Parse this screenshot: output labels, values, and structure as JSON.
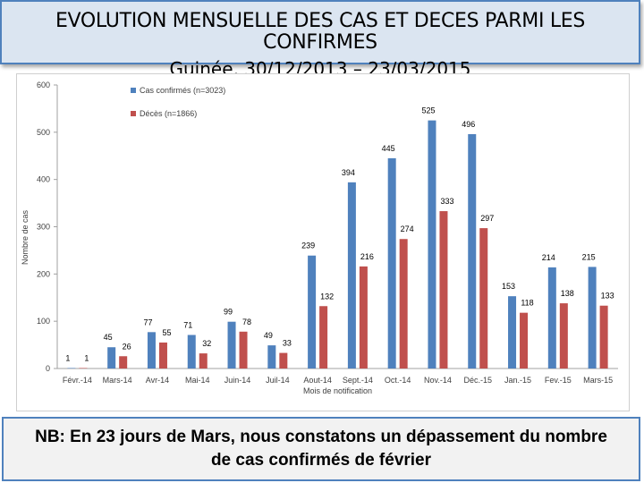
{
  "title": {
    "line1": "EVOLUTION MENSUELLE DES CAS ET DECES PARMI LES CONFIRMES",
    "line2": "Guinée, 30/12/2013 – 23/03/2015"
  },
  "note": {
    "line1": "NB: En 23 jours de Mars, nous constatons un dépassement du nombre",
    "line2": "de cas confirmés de février"
  },
  "colors": {
    "cas": "#4f81bd",
    "deces": "#c0504d"
  },
  "chart_data": {
    "type": "bar",
    "title": "",
    "xlabel": "Mois de notification",
    "ylabel": "Nombre de cas",
    "ylim": [
      0,
      600
    ],
    "yticks": [
      0,
      100,
      200,
      300,
      400,
      500,
      600
    ],
    "legend_position": "top-center",
    "categories": [
      "Févr.-14",
      "Mars-14",
      "Avr-14",
      "Mai-14",
      "Juin-14",
      "Juil-14",
      "Aout-14",
      "Sept.-14",
      "Oct.-14",
      "Nov.-14",
      "Déc.-15",
      "Jan.-15",
      "Fev.-15",
      "Mars-15"
    ],
    "series": [
      {
        "name": "Cas confirmés (n=3023)",
        "color": "#4f81bd",
        "values": [
          1,
          45,
          77,
          71,
          99,
          49,
          239,
          394,
          445,
          525,
          496,
          153,
          214,
          215
        ]
      },
      {
        "name": "Décès (n=1866)",
        "color": "#c0504d",
        "values": [
          1,
          26,
          55,
          32,
          78,
          33,
          132,
          216,
          274,
          333,
          297,
          118,
          138,
          133
        ]
      }
    ]
  }
}
